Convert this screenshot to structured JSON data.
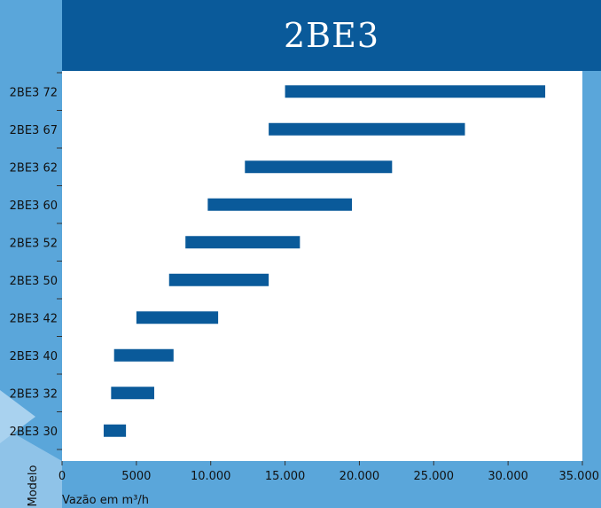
{
  "header": {
    "title": "2BE3"
  },
  "colors": {
    "bar": "#0a5a9a",
    "header": "#0a5a9a",
    "frame": "#5aa6da",
    "plot": "#ffffff"
  },
  "chart_data": {
    "type": "bar",
    "orientation": "horizontal-range",
    "title": "2BE3",
    "xlabel": "Vazão em m³/h",
    "ylabel": "Modelo",
    "xlim": [
      0,
      35000
    ],
    "x_ticks": [
      0,
      5000,
      10000,
      15000,
      20000,
      25000,
      30000,
      35000
    ],
    "x_tick_labels": [
      "0",
      "5000",
      "10.000",
      "15.000",
      "20.000",
      "25.000",
      "30.000",
      "35.000"
    ],
    "grid": false,
    "categories": [
      "2BE3 72",
      "2BE3 67",
      "2BE3 62",
      "2BE3 60",
      "2BE3 52",
      "2BE3 50",
      "2BE3 42",
      "2BE3 40",
      "2BE3 32",
      "2BE3 30"
    ],
    "ranges": [
      [
        15000,
        32500
      ],
      [
        13900,
        27100
      ],
      [
        12300,
        22200
      ],
      [
        9800,
        19500
      ],
      [
        8300,
        16000
      ],
      [
        7200,
        13900
      ],
      [
        5000,
        10500
      ],
      [
        3500,
        7500
      ],
      [
        3300,
        6200
      ],
      [
        2800,
        4300
      ]
    ]
  }
}
